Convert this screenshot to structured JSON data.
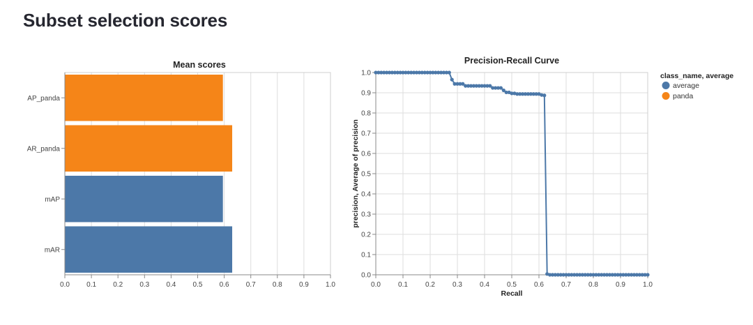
{
  "page": {
    "title": "Subset selection scores"
  },
  "colors": {
    "average": "#4c78a8",
    "panda": "#f58518"
  },
  "chart_data": [
    {
      "type": "bar",
      "orientation": "horizontal",
      "title": "Mean scores",
      "xlabel": "",
      "ylabel": "",
      "xlim": [
        0,
        1
      ],
      "x_ticks": [
        "0.0",
        "0.1",
        "0.2",
        "0.3",
        "0.4",
        "0.5",
        "0.6",
        "0.7",
        "0.8",
        "0.9",
        "1.0"
      ],
      "categories": [
        "AP_panda",
        "AR_panda",
        "mAP",
        "mAR"
      ],
      "values": [
        0.595,
        0.63,
        0.595,
        0.63
      ],
      "bar_colors": [
        "#f58518",
        "#f58518",
        "#4c78a8",
        "#4c78a8"
      ],
      "grid": true
    },
    {
      "type": "line",
      "title": "Precision-Recall Curve",
      "xlabel": "Recall",
      "ylabel": "precision, Average of precision",
      "xlim": [
        0,
        1
      ],
      "ylim": [
        0,
        1
      ],
      "x_ticks": [
        "0.0",
        "0.1",
        "0.2",
        "0.3",
        "0.4",
        "0.5",
        "0.6",
        "0.7",
        "0.8",
        "0.9",
        "1.0"
      ],
      "y_ticks": [
        "0.0",
        "0.1",
        "0.2",
        "0.3",
        "0.4",
        "0.5",
        "0.6",
        "0.7",
        "0.8",
        "0.9",
        "1.0"
      ],
      "legend": {
        "title": "class_name, average",
        "position": "right",
        "entries": [
          {
            "label": "average",
            "color": "#4c78a8"
          },
          {
            "label": "panda",
            "color": "#f58518"
          }
        ]
      },
      "series": [
        {
          "name": "average",
          "x": [
            0,
            0.01,
            0.02,
            0.03,
            0.04,
            0.05,
            0.06,
            0.07,
            0.08,
            0.09,
            0.1,
            0.11,
            0.12,
            0.13,
            0.14,
            0.15,
            0.16,
            0.17,
            0.18,
            0.19,
            0.2,
            0.21,
            0.22,
            0.23,
            0.24,
            0.25,
            0.26,
            0.27,
            0.28,
            0.29,
            0.3,
            0.31,
            0.32,
            0.33,
            0.34,
            0.35,
            0.36,
            0.37,
            0.38,
            0.39,
            0.4,
            0.41,
            0.42,
            0.43,
            0.44,
            0.45,
            0.46,
            0.47,
            0.48,
            0.49,
            0.5,
            0.51,
            0.52,
            0.53,
            0.54,
            0.55,
            0.56,
            0.57,
            0.58,
            0.59,
            0.6,
            0.61,
            0.62,
            0.63,
            0.64,
            0.65,
            0.66,
            0.67,
            0.68,
            0.69,
            0.7,
            0.71,
            0.72,
            0.73,
            0.74,
            0.75,
            0.76,
            0.77,
            0.78,
            0.79,
            0.8,
            0.81,
            0.82,
            0.83,
            0.84,
            0.85,
            0.86,
            0.87,
            0.88,
            0.89,
            0.9,
            0.91,
            0.92,
            0.93,
            0.94,
            0.95,
            0.96,
            0.97,
            0.98,
            0.99,
            1.0
          ],
          "y": [
            1,
            1,
            1,
            1,
            1,
            1,
            1,
            1,
            1,
            1,
            1,
            1,
            1,
            1,
            1,
            1,
            1,
            1,
            1,
            1,
            1,
            1,
            1,
            1,
            1,
            1,
            1,
            1,
            0.965,
            0.944,
            0.944,
            0.944,
            0.944,
            0.934,
            0.934,
            0.934,
            0.934,
            0.934,
            0.934,
            0.934,
            0.934,
            0.934,
            0.934,
            0.924,
            0.924,
            0.924,
            0.924,
            0.912,
            0.902,
            0.902,
            0.897,
            0.897,
            0.894,
            0.894,
            0.894,
            0.894,
            0.894,
            0.894,
            0.894,
            0.894,
            0.894,
            0.889,
            0.887,
            0.004,
            0,
            0,
            0,
            0,
            0,
            0,
            0,
            0,
            0,
            0,
            0,
            0,
            0,
            0,
            0,
            0,
            0,
            0,
            0,
            0,
            0,
            0,
            0,
            0,
            0,
            0,
            0,
            0,
            0,
            0,
            0,
            0,
            0,
            0,
            0,
            0,
            0
          ]
        }
      ]
    }
  ]
}
